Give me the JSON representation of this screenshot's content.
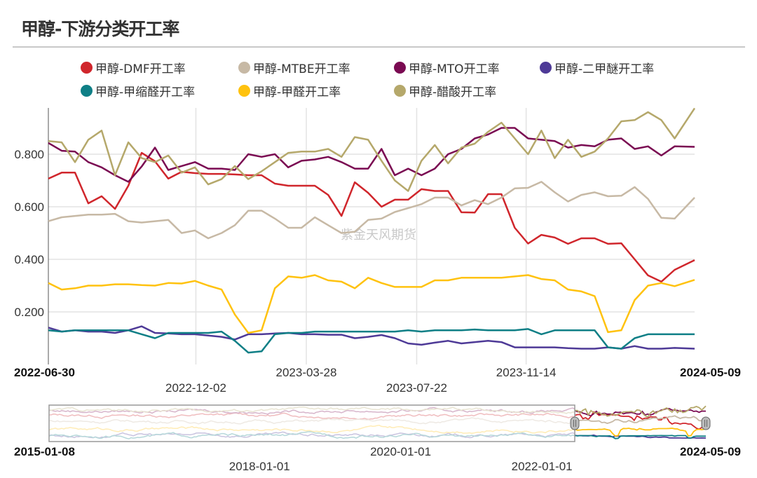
{
  "title": "甲醇-下游分类开工率",
  "watermark": "紫金天风期货",
  "chart_data": {
    "type": "line",
    "title": "甲醇-下游分类开工率",
    "ylim": [
      0,
      0.976
    ],
    "yticks": [
      "0.200",
      "0.400",
      "0.600",
      "0.800"
    ],
    "ytick_values": [
      0.2,
      0.4,
      0.6,
      0.8
    ],
    "xlim": [
      "2022-06-30",
      "2024-05-09"
    ],
    "xticks": [
      {
        "label": "2022-06-30",
        "date": "2022-06-30",
        "bold": true,
        "row": 1
      },
      {
        "label": "2022-12-02",
        "date": "2022-12-02",
        "bold": false,
        "row": 2
      },
      {
        "label": "2023-03-28",
        "date": "2023-03-28",
        "bold": false,
        "row": 1
      },
      {
        "label": "2023-07-22",
        "date": "2023-07-22",
        "bold": false,
        "row": 2
      },
      {
        "label": "2023-11-14",
        "date": "2023-11-14",
        "bold": false,
        "row": 1
      },
      {
        "label": "2024-05-09",
        "date": "2024-05-09",
        "bold": true,
        "row": 1
      }
    ],
    "grid": true,
    "legend_placement": "top",
    "x": [
      "2022-06-30",
      "2022-07-14",
      "2022-07-28",
      "2022-08-11",
      "2022-08-25",
      "2022-09-08",
      "2022-09-22",
      "2022-10-06",
      "2022-10-20",
      "2022-11-03",
      "2022-11-17",
      "2022-12-01",
      "2022-12-15",
      "2022-12-29",
      "2023-01-12",
      "2023-01-26",
      "2023-02-09",
      "2023-02-23",
      "2023-03-09",
      "2023-03-23",
      "2023-04-06",
      "2023-04-20",
      "2023-05-04",
      "2023-05-18",
      "2023-06-01",
      "2023-06-15",
      "2023-06-29",
      "2023-07-13",
      "2023-07-27",
      "2023-08-10",
      "2023-08-24",
      "2023-09-07",
      "2023-09-21",
      "2023-10-05",
      "2023-10-19",
      "2023-11-02",
      "2023-11-16",
      "2023-11-30",
      "2023-12-14",
      "2023-12-28",
      "2024-01-11",
      "2024-01-25",
      "2024-02-08",
      "2024-02-22",
      "2024-03-07",
      "2024-03-21",
      "2024-04-04",
      "2024-04-18",
      "2024-05-09"
    ],
    "series": [
      {
        "name": "甲醇-DMF开工率",
        "color": "#d0262c",
        "values": [
          0.707,
          0.73,
          0.73,
          0.613,
          0.64,
          0.592,
          0.68,
          0.805,
          0.773,
          0.707,
          0.733,
          0.728,
          0.725,
          0.725,
          0.723,
          0.72,
          0.72,
          0.688,
          0.68,
          0.68,
          0.68,
          0.645,
          0.565,
          0.693,
          0.653,
          0.6,
          0.627,
          0.627,
          0.667,
          0.66,
          0.66,
          0.579,
          0.578,
          0.648,
          0.648,
          0.52,
          0.46,
          0.493,
          0.483,
          0.459,
          0.48,
          0.48,
          0.459,
          0.461,
          0.4,
          0.339,
          0.315,
          0.36,
          0.397
        ]
      },
      {
        "name": "甲醇-MTBE开工率",
        "color": "#c7b9a5",
        "values": [
          0.545,
          0.56,
          0.565,
          0.57,
          0.57,
          0.573,
          0.545,
          0.54,
          0.545,
          0.55,
          0.5,
          0.51,
          0.48,
          0.5,
          0.53,
          0.585,
          0.585,
          0.555,
          0.52,
          0.52,
          0.56,
          0.53,
          0.5,
          0.505,
          0.55,
          0.555,
          0.58,
          0.595,
          0.61,
          0.635,
          0.635,
          0.605,
          0.625,
          0.61,
          0.635,
          0.67,
          0.672,
          0.695,
          0.655,
          0.62,
          0.645,
          0.655,
          0.64,
          0.642,
          0.675,
          0.63,
          0.558,
          0.555,
          0.635
        ]
      },
      {
        "name": "甲醇-MTO开工率",
        "color": "#7a0a52",
        "values": [
          0.843,
          0.813,
          0.81,
          0.77,
          0.75,
          0.72,
          0.695,
          0.753,
          0.825,
          0.74,
          0.755,
          0.77,
          0.745,
          0.745,
          0.74,
          0.8,
          0.79,
          0.8,
          0.75,
          0.775,
          0.78,
          0.79,
          0.77,
          0.745,
          0.745,
          0.82,
          0.72,
          0.745,
          0.72,
          0.745,
          0.8,
          0.82,
          0.86,
          0.875,
          0.9,
          0.9,
          0.86,
          0.855,
          0.85,
          0.825,
          0.835,
          0.83,
          0.855,
          0.86,
          0.82,
          0.83,
          0.795,
          0.83,
          0.828
        ]
      },
      {
        "name": "甲醇-二甲醚开工率",
        "color": "#4e3a97",
        "values": [
          0.14,
          0.125,
          0.13,
          0.125,
          0.125,
          0.12,
          0.13,
          0.145,
          0.12,
          0.118,
          0.115,
          0.115,
          0.11,
          0.105,
          0.095,
          0.115,
          0.115,
          0.118,
          0.12,
          0.115,
          0.115,
          0.113,
          0.113,
          0.1,
          0.105,
          0.112,
          0.1,
          0.08,
          0.075,
          0.083,
          0.09,
          0.08,
          0.085,
          0.09,
          0.085,
          0.065,
          0.065,
          0.065,
          0.065,
          0.062,
          0.06,
          0.06,
          0.065,
          0.06,
          0.07,
          0.06,
          0.06,
          0.063,
          0.06
        ]
      },
      {
        "name": "甲醇-甲缩醛开工率",
        "color": "#0f7f86",
        "values": [
          0.13,
          0.125,
          0.13,
          0.13,
          0.13,
          0.13,
          0.13,
          0.115,
          0.1,
          0.12,
          0.12,
          0.12,
          0.12,
          0.125,
          0.09,
          0.045,
          0.05,
          0.115,
          0.12,
          0.12,
          0.125,
          0.125,
          0.125,
          0.125,
          0.125,
          0.125,
          0.125,
          0.13,
          0.125,
          0.13,
          0.13,
          0.13,
          0.133,
          0.13,
          0.13,
          0.13,
          0.135,
          0.115,
          0.13,
          0.13,
          0.13,
          0.13,
          0.065,
          0.06,
          0.1,
          0.115,
          0.115,
          0.115,
          0.115
        ]
      },
      {
        "name": "甲醇-甲醛开工率",
        "color": "#ffc20e",
        "values": [
          0.31,
          0.285,
          0.29,
          0.3,
          0.3,
          0.305,
          0.305,
          0.302,
          0.3,
          0.31,
          0.308,
          0.318,
          0.3,
          0.285,
          0.19,
          0.12,
          0.13,
          0.29,
          0.335,
          0.33,
          0.34,
          0.32,
          0.315,
          0.29,
          0.33,
          0.31,
          0.295,
          0.295,
          0.295,
          0.32,
          0.32,
          0.33,
          0.33,
          0.33,
          0.33,
          0.335,
          0.34,
          0.325,
          0.32,
          0.285,
          0.278,
          0.26,
          0.123,
          0.13,
          0.245,
          0.3,
          0.31,
          0.298,
          0.322
        ]
      },
      {
        "name": "甲醇-醋酸开工率",
        "color": "#b5a86b",
        "values": [
          0.85,
          0.845,
          0.77,
          0.855,
          0.89,
          0.72,
          0.845,
          0.785,
          0.77,
          0.795,
          0.73,
          0.75,
          0.685,
          0.705,
          0.755,
          0.705,
          0.735,
          0.77,
          0.805,
          0.81,
          0.81,
          0.82,
          0.79,
          0.865,
          0.855,
          0.775,
          0.7,
          0.66,
          0.775,
          0.835,
          0.765,
          0.825,
          0.84,
          0.885,
          0.92,
          0.86,
          0.8,
          0.89,
          0.785,
          0.855,
          0.79,
          0.81,
          0.86,
          0.925,
          0.93,
          0.96,
          0.93,
          0.86,
          0.975
        ]
      }
    ]
  },
  "navigator": {
    "start_label": "2015-01-08",
    "end_label": "2024-05-09",
    "ticks": [
      "2018-01-01",
      "2020-01-01",
      "2022-01-01"
    ],
    "range": [
      "2015-01-08",
      "2024-05-09"
    ],
    "selected": [
      "2022-06-30",
      "2024-05-09"
    ]
  }
}
